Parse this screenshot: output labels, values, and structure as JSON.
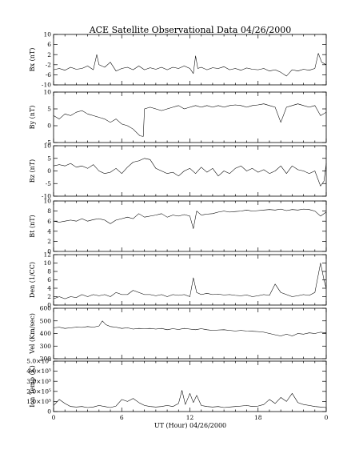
{
  "chart_data": {
    "type": "line",
    "title": "ACE Satellite Observational Data   04/26/2000",
    "xlabel": "UT (Hour)  04/26/2000",
    "x_ticks": [
      "0",
      "6",
      "12",
      "18",
      "0"
    ],
    "xlim": [
      0,
      24
    ],
    "panels": [
      {
        "ylabel": "Bx (nT)",
        "ylim": [
          -10,
          10
        ],
        "y_ticks": [
          -10,
          -6,
          -2,
          2,
          6,
          10
        ],
        "x": [
          0,
          0.5,
          1,
          1.5,
          2,
          2.5,
          3,
          3.5,
          3.8,
          4,
          4.5,
          5,
          5.5,
          6,
          6.5,
          7,
          7.5,
          8,
          8.5,
          9,
          9.5,
          10,
          10.5,
          11,
          11.5,
          12,
          12.3,
          12.5,
          12.7,
          13,
          13.5,
          14,
          14.5,
          15,
          15.5,
          16,
          16.5,
          17,
          17.5,
          18,
          18.5,
          19,
          19.5,
          20,
          20.5,
          21,
          21.5,
          22,
          22.5,
          23,
          23.3,
          23.6,
          24
        ],
        "y": [
          -4,
          -3.5,
          -4.2,
          -3,
          -3.8,
          -3.5,
          -2.5,
          -4,
          2,
          -2,
          -3,
          -1,
          -4.5,
          -3.5,
          -3,
          -4,
          -2.5,
          -4,
          -3.2,
          -3.8,
          -3,
          -4,
          -3,
          -3.5,
          -2.5,
          -3.5,
          -5.5,
          1.5,
          -3.5,
          -3,
          -4,
          -3.2,
          -3.5,
          -2.8,
          -4,
          -3.5,
          -4.2,
          -3.3,
          -3.8,
          -4,
          -3.5,
          -4.5,
          -4,
          -5,
          -6.5,
          -4,
          -4.5,
          -3.8,
          -4.2,
          -3.5,
          2.5,
          -1,
          -2
        ]
      },
      {
        "ylabel": "By (nT)",
        "ylim": [
          -5,
          10
        ],
        "y_ticks": [
          -5,
          0,
          5,
          10
        ],
        "x": [
          0,
          0.5,
          1,
          1.5,
          2,
          2.5,
          3,
          3.5,
          4,
          4.5,
          5,
          5.5,
          6,
          6.5,
          7,
          7.3,
          7.6,
          7.9,
          8,
          8.5,
          9,
          9.5,
          10,
          10.5,
          11,
          11.5,
          12,
          12.5,
          13,
          13.5,
          14,
          14.5,
          15,
          15.5,
          16,
          16.5,
          17,
          17.5,
          18,
          18.5,
          19,
          19.5,
          20,
          20.5,
          21,
          21.5,
          22,
          22.5,
          23,
          23.5,
          24
        ],
        "y": [
          3,
          2,
          3.5,
          3,
          4,
          4.5,
          3.5,
          3,
          2.5,
          2,
          1,
          2,
          0.5,
          0,
          -1,
          -2,
          -3,
          -3.2,
          5,
          5.5,
          5,
          4.5,
          5,
          5.5,
          6,
          5,
          5.5,
          6,
          5.5,
          6,
          5.5,
          6,
          5.5,
          6,
          6.2,
          6,
          5.5,
          6,
          6.2,
          6.5,
          6,
          5.5,
          1,
          5.5,
          6,
          6.5,
          6,
          5.5,
          6,
          3,
          4
        ]
      },
      {
        "ylabel": "Bz (nT)",
        "ylim": [
          -10,
          10
        ],
        "y_ticks": [
          -10,
          -5,
          0,
          5,
          10
        ],
        "x": [
          0,
          0.5,
          1,
          1.5,
          2,
          2.5,
          3,
          3.5,
          4,
          4.5,
          5,
          5.5,
          6,
          6.5,
          7,
          7.5,
          8,
          8.5,
          9,
          9.5,
          10,
          10.5,
          11,
          11.5,
          12,
          12.5,
          13,
          13.5,
          14,
          14.5,
          15,
          15.5,
          16,
          16.5,
          17,
          17.5,
          18,
          18.5,
          19,
          19.5,
          20,
          20.5,
          21,
          21.5,
          22,
          22.5,
          23,
          23.5,
          23.8,
          24
        ],
        "y": [
          2,
          2.5,
          2,
          3,
          1.5,
          2,
          1,
          2.5,
          0,
          -1,
          -0.5,
          1,
          -1,
          1.5,
          3.5,
          4,
          5,
          4.5,
          1,
          0,
          -1,
          -0.5,
          -2,
          0,
          1,
          -1,
          1.5,
          -0.5,
          1,
          -2,
          0,
          -1,
          1,
          2,
          0,
          1,
          -0.5,
          0.5,
          -1,
          0,
          2,
          -1,
          2,
          0.5,
          0,
          -1,
          0,
          -6,
          -4,
          3
        ]
      },
      {
        "ylabel": "Bt (nT)",
        "ylim": [
          0,
          10
        ],
        "y_ticks": [
          0,
          2,
          4,
          6,
          8,
          10
        ],
        "x": [
          0,
          0.5,
          1,
          1.5,
          2,
          2.5,
          3,
          3.5,
          4,
          4.5,
          5,
          5.5,
          6,
          6.5,
          7,
          7.5,
          8,
          8.5,
          9,
          9.5,
          10,
          10.5,
          11,
          11.5,
          12,
          12.3,
          12.6,
          13,
          13.5,
          14,
          14.5,
          15,
          15.5,
          16,
          16.5,
          17,
          17.5,
          18,
          18.5,
          19,
          19.5,
          20,
          20.5,
          21,
          21.5,
          22,
          22.5,
          23,
          23.5,
          24
        ],
        "y": [
          6,
          5.8,
          6,
          6.2,
          6,
          6.5,
          6,
          6.3,
          6.5,
          6.2,
          5.5,
          6.2,
          6.5,
          6.8,
          6.5,
          7.5,
          6.8,
          7,
          7.2,
          7.5,
          6.8,
          7.2,
          7,
          7.3,
          7,
          4.5,
          8,
          7.2,
          7.4,
          7.5,
          7.8,
          8,
          7.8,
          7.9,
          8,
          8.2,
          8,
          8.1,
          8.2,
          8.3,
          8.2,
          8.4,
          8.1,
          8.3,
          8.2,
          8.4,
          8.3,
          8,
          7,
          7.8
        ]
      },
      {
        "ylabel": "Den (1/CC)",
        "ylim": [
          0,
          12
        ],
        "y_ticks": [
          0,
          2,
          4,
          6,
          8,
          10,
          12
        ],
        "x": [
          0,
          0.5,
          1,
          1.5,
          2,
          2.5,
          3,
          3.5,
          4,
          4.5,
          5,
          5.5,
          6,
          6.5,
          7,
          7.5,
          8,
          8.5,
          9,
          9.5,
          10,
          10.5,
          11,
          11.5,
          12,
          12.3,
          12.6,
          13,
          13.5,
          14,
          14.5,
          15,
          15.5,
          16,
          16.5,
          17,
          17.5,
          18,
          18.5,
          19,
          19.5,
          20,
          20.5,
          21,
          21.5,
          22,
          22.5,
          23,
          23.5,
          23.8,
          24
        ],
        "y": [
          1.5,
          2,
          1.5,
          2,
          1.8,
          2.5,
          2,
          2.5,
          2.2,
          2.5,
          2,
          3,
          2.5,
          2.5,
          3.5,
          3,
          2.5,
          2.5,
          2.2,
          2.5,
          2,
          2.5,
          2.3,
          2.5,
          2,
          6.5,
          3,
          2.5,
          2.8,
          2.5,
          2.6,
          2.4,
          2.5,
          2.3,
          2.2,
          2.4,
          2,
          2.2,
          2.5,
          2.3,
          5,
          3,
          2.5,
          2,
          2.2,
          2.5,
          2.3,
          3,
          10,
          6,
          4
        ]
      },
      {
        "ylabel": "Vel (Km/sec)",
        "ylim": [
          200,
          600
        ],
        "y_ticks": [
          200,
          300,
          400,
          500,
          600
        ],
        "x": [
          0,
          0.5,
          1,
          1.5,
          2,
          2.5,
          3,
          3.5,
          4,
          4.3,
          4.6,
          5,
          5.5,
          6,
          6.5,
          7,
          7.5,
          8,
          8.5,
          9,
          9.5,
          10,
          10.5,
          11,
          11.5,
          12,
          12.5,
          13,
          13.5,
          14,
          14.5,
          15,
          15.5,
          16,
          16.5,
          17,
          17.5,
          18,
          18.5,
          19,
          19.5,
          20,
          20.5,
          21,
          21.5,
          22,
          22.5,
          23,
          23.5,
          24
        ],
        "y": [
          445,
          450,
          440,
          445,
          450,
          448,
          455,
          450,
          460,
          500,
          470,
          455,
          450,
          440,
          445,
          435,
          440,
          438,
          440,
          435,
          440,
          430,
          438,
          432,
          440,
          435,
          430,
          438,
          430,
          425,
          428,
          430,
          425,
          420,
          425,
          420,
          418,
          415,
          410,
          400,
          390,
          380,
          395,
          380,
          400,
          395,
          405,
          400,
          410,
          405
        ]
      },
      {
        "ylabel": "Ion Temp (K)",
        "ylim": [
          0,
          500000
        ],
        "y_ticks": [
          0,
          100000,
          200000,
          300000,
          400000,
          500000
        ],
        "y_tick_labels": [
          "0",
          "1.0×10⁵",
          "2.0×10⁵",
          "3.0×10⁵",
          "4.0×10⁵",
          "5.0×10⁵"
        ],
        "x": [
          0,
          0.5,
          1,
          1.5,
          2,
          2.5,
          3,
          3.5,
          4,
          4.5,
          5,
          5.5,
          6,
          6.5,
          7,
          7.5,
          8,
          8.5,
          9,
          9.5,
          10,
          10.5,
          11,
          11.3,
          11.6,
          12,
          12.3,
          12.6,
          13,
          13.5,
          14,
          14.5,
          15,
          15.5,
          16,
          16.5,
          17,
          17.5,
          18,
          18.5,
          19,
          19.5,
          20,
          20.5,
          21,
          21.5,
          22,
          22.5,
          23,
          23.5,
          24
        ],
        "y": [
          60000,
          120000,
          80000,
          50000,
          45000,
          50000,
          40000,
          45000,
          60000,
          50000,
          40000,
          55000,
          120000,
          100000,
          130000,
          90000,
          60000,
          50000,
          45000,
          50000,
          60000,
          50000,
          80000,
          210000,
          70000,
          180000,
          90000,
          160000,
          60000,
          50000,
          45000,
          50000,
          40000,
          45000,
          50000,
          55000,
          60000,
          50000,
          55000,
          70000,
          120000,
          80000,
          140000,
          100000,
          180000,
          90000,
          70000,
          60000,
          50000,
          45000,
          40000
        ]
      }
    ]
  }
}
